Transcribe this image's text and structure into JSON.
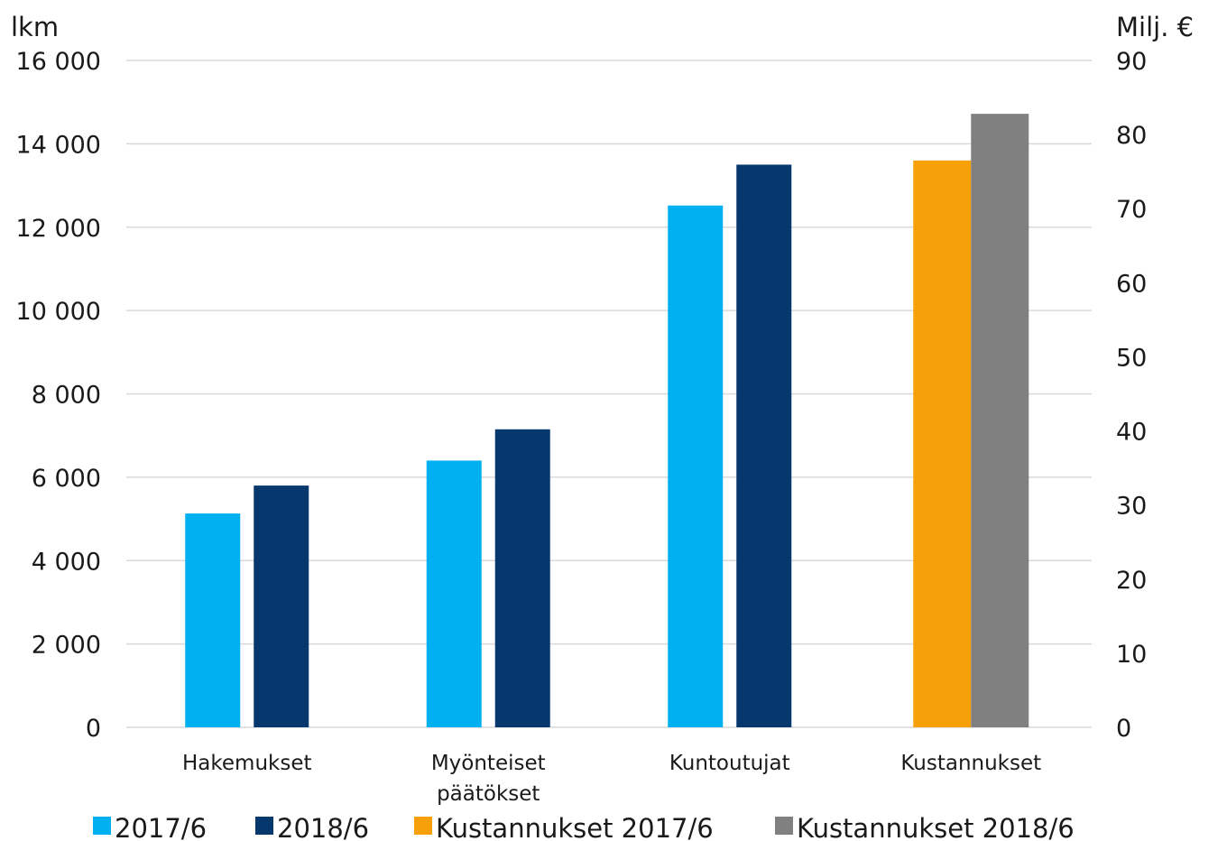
{
  "chart_data": {
    "type": "bar",
    "y_left_label": "lkm",
    "y_right_label": "Milj. €",
    "ylim_left": [
      0,
      16000
    ],
    "ylim_right": [
      0,
      90
    ],
    "y_left_ticks": [
      "16 000",
      "14 000",
      "12 000",
      "10 000",
      "8 000",
      "6 000",
      "4 000",
      "2 000",
      "0"
    ],
    "y_left_tick_values": [
      16000,
      14000,
      12000,
      10000,
      8000,
      6000,
      4000,
      2000,
      0
    ],
    "y_right_ticks": [
      "90",
      "80",
      "70",
      "60",
      "50",
      "40",
      "30",
      "20",
      "10",
      "0"
    ],
    "y_right_tick_values": [
      90,
      80,
      70,
      60,
      50,
      40,
      30,
      20,
      10,
      0
    ],
    "grid": true,
    "categories": [
      {
        "lines": [
          "Hakemukset"
        ]
      },
      {
        "lines": [
          "Myönteiset",
          "päätökset"
        ]
      },
      {
        "lines": [
          "Kuntoutujat"
        ]
      },
      {
        "lines": [
          "Kustannukset"
        ]
      }
    ],
    "series": [
      {
        "name": "2017/6",
        "color": "#00b0f0",
        "axis": "left",
        "values": [
          5130,
          6400,
          12520,
          null
        ]
      },
      {
        "name": "2018/6",
        "color": "#06386e",
        "axis": "left",
        "values": [
          5800,
          7150,
          13500,
          null
        ]
      },
      {
        "name": "Kustannukset 2017/6",
        "color": "#f7a00a",
        "axis": "right",
        "values": [
          null,
          null,
          null,
          76.5
        ]
      },
      {
        "name": "Kustannukset 2018/6",
        "color": "#808080",
        "axis": "right",
        "values": [
          null,
          null,
          null,
          82.8
        ]
      }
    ],
    "legend_position": "bottom"
  }
}
